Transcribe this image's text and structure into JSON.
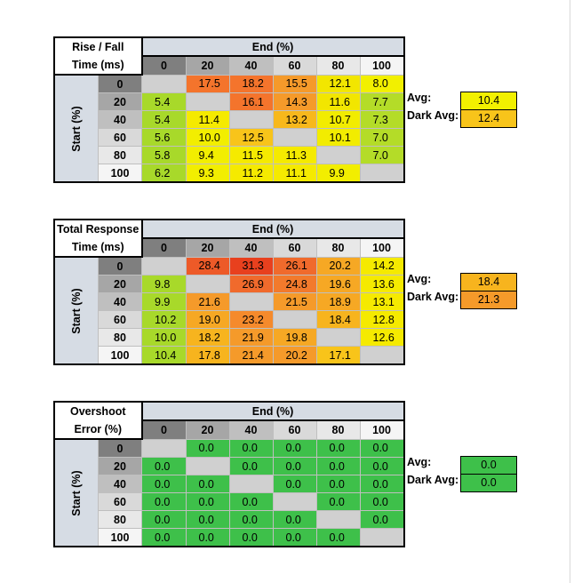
{
  "colors": {
    "header_bg": "#d6dce4",
    "empty": "#d0d0d0",
    "green": "#3ec04a",
    "col_hdr_shades": [
      "#7f7f7f",
      "#a6a6a6",
      "#bfbfbf",
      "#d9d9d9",
      "#e8e8e8",
      "#f5f5f5"
    ]
  },
  "chart_data": [
    {
      "type": "table",
      "title": "Rise / Fall Time (ms)",
      "title_lines": [
        "Rise / Fall",
        "Time (ms)"
      ],
      "column_header": "End (%)",
      "row_header": "Start (%)",
      "columns": [
        "0",
        "20",
        "40",
        "60",
        "80",
        "100"
      ],
      "rows": [
        "0",
        "20",
        "40",
        "60",
        "80",
        "100"
      ],
      "cells": [
        [
          "",
          "17.5",
          "18.2",
          "15.5",
          "12.1",
          "8.0"
        ],
        [
          "5.4",
          "",
          "16.1",
          "14.3",
          "11.6",
          "7.7"
        ],
        [
          "5.4",
          "11.4",
          "",
          "13.2",
          "10.7",
          "7.3"
        ],
        [
          "5.6",
          "10.0",
          "12.5",
          "",
          "10.1",
          "7.0"
        ],
        [
          "5.8",
          "9.4",
          "11.5",
          "11.3",
          "",
          "7.0"
        ],
        [
          "6.2",
          "9.3",
          "11.2",
          "11.1",
          "9.9",
          ""
        ]
      ],
      "cell_colors": [
        [
          "",
          "#f4742c",
          "#f4742c",
          "#f59a2a",
          "#f2e600",
          "#f2f000"
        ],
        [
          "#a8d92a",
          "",
          "#f4742c",
          "#f59a2a",
          "#f2e600",
          "#b4dc28"
        ],
        [
          "#a8d92a",
          "#f5ea00",
          "",
          "#f7b81c",
          "#f2ec00",
          "#b4dc28"
        ],
        [
          "#a8d92a",
          "#f2ee00",
          "#f8c41a",
          "",
          "#f2ec00",
          "#b4dc28"
        ],
        [
          "#a8d92a",
          "#f2ee00",
          "#f5ea00",
          "#f5ea00",
          "",
          "#b4dc28"
        ],
        [
          "#a8d92a",
          "#f2ee00",
          "#f5ea00",
          "#f5ea00",
          "#f2ee00",
          ""
        ]
      ],
      "summary": [
        {
          "label": "Avg:",
          "value": "10.4",
          "color": "#f2f000"
        },
        {
          "label": "Dark Avg:",
          "value": "12.4",
          "color": "#f8c41a"
        }
      ]
    },
    {
      "type": "table",
      "title": "Total Response Time (ms)",
      "title_lines": [
        "Total Response",
        "Time (ms)"
      ],
      "column_header": "End (%)",
      "row_header": "Start (%)",
      "columns": [
        "0",
        "20",
        "40",
        "60",
        "80",
        "100"
      ],
      "rows": [
        "0",
        "20",
        "40",
        "60",
        "80",
        "100"
      ],
      "cells": [
        [
          "",
          "28.4",
          "31.3",
          "26.1",
          "20.2",
          "14.2"
        ],
        [
          "9.8",
          "",
          "26.9",
          "24.8",
          "19.6",
          "13.6"
        ],
        [
          "9.9",
          "21.6",
          "",
          "21.5",
          "18.9",
          "13.1"
        ],
        [
          "10.2",
          "19.0",
          "23.2",
          "",
          "18.4",
          "12.8"
        ],
        [
          "10.0",
          "18.2",
          "21.9",
          "19.8",
          "",
          "12.6"
        ],
        [
          "10.4",
          "17.8",
          "21.4",
          "20.2",
          "17.1",
          ""
        ]
      ],
      "cell_colors": [
        [
          "",
          "#ed5a28",
          "#e8401e",
          "#f06a2c",
          "#f6a824",
          "#f5ea00"
        ],
        [
          "#a8d92a",
          "",
          "#f06a2c",
          "#f27a2c",
          "#f6a824",
          "#f5ea00"
        ],
        [
          "#a8d92a",
          "#f59a2a",
          "",
          "#f59a2a",
          "#f6a824",
          "#f5ea00"
        ],
        [
          "#a8d92a",
          "#f6a824",
          "#f58a2c",
          "",
          "#f7b41e",
          "#f5ea00"
        ],
        [
          "#a8d92a",
          "#f7b41e",
          "#f59a2a",
          "#f6a824",
          "",
          "#f5ea00"
        ],
        [
          "#a8d92a",
          "#f7b41e",
          "#f59a2a",
          "#f59a2a",
          "#f8c41a",
          ""
        ]
      ],
      "summary": [
        {
          "label": "Avg:",
          "value": "18.4",
          "color": "#f7b41e"
        },
        {
          "label": "Dark Avg:",
          "value": "21.3",
          "color": "#f59a2a"
        }
      ]
    },
    {
      "type": "table",
      "title": "Overshoot Error (%)",
      "title_lines": [
        "Overshoot",
        "Error (%)"
      ],
      "column_header": "End (%)",
      "row_header": "Start (%)",
      "columns": [
        "0",
        "20",
        "40",
        "60",
        "80",
        "100"
      ],
      "rows": [
        "0",
        "20",
        "40",
        "60",
        "80",
        "100"
      ],
      "cells": [
        [
          "",
          "0.0",
          "0.0",
          "0.0",
          "0.0",
          "0.0"
        ],
        [
          "0.0",
          "",
          "0.0",
          "0.0",
          "0.0",
          "0.0"
        ],
        [
          "0.0",
          "0.0",
          "",
          "0.0",
          "0.0",
          "0.0"
        ],
        [
          "0.0",
          "0.0",
          "0.0",
          "",
          "0.0",
          "0.0"
        ],
        [
          "0.0",
          "0.0",
          "0.0",
          "0.0",
          "",
          "0.0"
        ],
        [
          "0.0",
          "0.0",
          "0.0",
          "0.0",
          "0.0",
          ""
        ]
      ],
      "cell_colors": [
        [
          "",
          "#3ec04a",
          "#3ec04a",
          "#3ec04a",
          "#3ec04a",
          "#3ec04a"
        ],
        [
          "#3ec04a",
          "",
          "#3ec04a",
          "#3ec04a",
          "#3ec04a",
          "#3ec04a"
        ],
        [
          "#3ec04a",
          "#3ec04a",
          "",
          "#3ec04a",
          "#3ec04a",
          "#3ec04a"
        ],
        [
          "#3ec04a",
          "#3ec04a",
          "#3ec04a",
          "",
          "#3ec04a",
          "#3ec04a"
        ],
        [
          "#3ec04a",
          "#3ec04a",
          "#3ec04a",
          "#3ec04a",
          "",
          "#3ec04a"
        ],
        [
          "#3ec04a",
          "#3ec04a",
          "#3ec04a",
          "#3ec04a",
          "#3ec04a",
          ""
        ]
      ],
      "summary": [
        {
          "label": "Avg:",
          "value": "0.0",
          "color": "#3ec04a"
        },
        {
          "label": "Dark Avg:",
          "value": "0.0",
          "color": "#3ec04a"
        }
      ]
    }
  ]
}
